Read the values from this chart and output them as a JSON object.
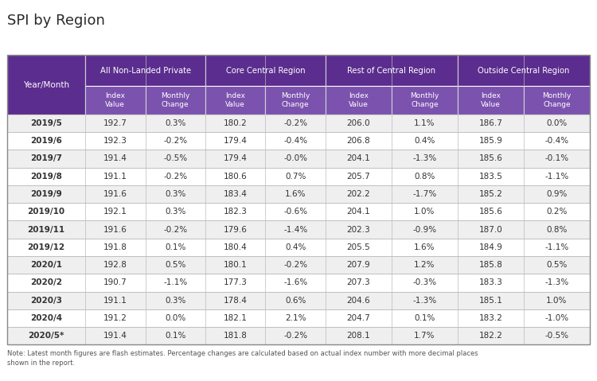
{
  "title": "SPI by Region",
  "header_bg": "#5B2D8E",
  "subheader_bg": "#7B52AE",
  "row_bg_odd": "#FFFFFF",
  "row_bg_even": "#F0F0F0",
  "header_text_color": "#FFFFFF",
  "data_text_color": "#333333",
  "border_color": "#BBBBBB",
  "title_color": "#333333",
  "note_text": "Note: Latest month figures are flash estimates. Percentage changes are calculated based on actual index number with more decimal places\nshown in the report.",
  "col_groups": [
    "Year/Month",
    "All Non-Landed Private",
    "Core Central Region",
    "Rest of Central Region",
    "Outside Central Region"
  ],
  "col_group_spans": [
    1,
    2,
    2,
    2,
    2
  ],
  "subheaders": [
    "",
    "Index\nValue",
    "Monthly\nChange",
    "Index\nValue",
    "Monthly\nChange",
    "Index\nValue",
    "Monthly\nChange",
    "Index\nValue",
    "Monthly\nChange"
  ],
  "rows": [
    [
      "2019/5",
      "192.7",
      "0.3%",
      "180.2",
      "-0.2%",
      "206.0",
      "1.1%",
      "186.7",
      "0.0%"
    ],
    [
      "2019/6",
      "192.3",
      "-0.2%",
      "179.4",
      "-0.4%",
      "206.8",
      "0.4%",
      "185.9",
      "-0.4%"
    ],
    [
      "2019/7",
      "191.4",
      "-0.5%",
      "179.4",
      "-0.0%",
      "204.1",
      "-1.3%",
      "185.6",
      "-0.1%"
    ],
    [
      "2019/8",
      "191.1",
      "-0.2%",
      "180.6",
      "0.7%",
      "205.7",
      "0.8%",
      "183.5",
      "-1.1%"
    ],
    [
      "2019/9",
      "191.6",
      "0.3%",
      "183.4",
      "1.6%",
      "202.2",
      "-1.7%",
      "185.2",
      "0.9%"
    ],
    [
      "2019/10",
      "192.1",
      "0.3%",
      "182.3",
      "-0.6%",
      "204.1",
      "1.0%",
      "185.6",
      "0.2%"
    ],
    [
      "2019/11",
      "191.6",
      "-0.2%",
      "179.6",
      "-1.4%",
      "202.3",
      "-0.9%",
      "187.0",
      "0.8%"
    ],
    [
      "2019/12",
      "191.8",
      "0.1%",
      "180.4",
      "0.4%",
      "205.5",
      "1.6%",
      "184.9",
      "-1.1%"
    ],
    [
      "2020/1",
      "192.8",
      "0.5%",
      "180.1",
      "-0.2%",
      "207.9",
      "1.2%",
      "185.8",
      "0.5%"
    ],
    [
      "2020/2",
      "190.7",
      "-1.1%",
      "177.3",
      "-1.6%",
      "207.3",
      "-0.3%",
      "183.3",
      "-1.3%"
    ],
    [
      "2020/3",
      "191.1",
      "0.3%",
      "178.4",
      "0.6%",
      "204.6",
      "-1.3%",
      "185.1",
      "1.0%"
    ],
    [
      "2020/4",
      "191.2",
      "0.0%",
      "182.1",
      "2.1%",
      "204.7",
      "0.1%",
      "183.2",
      "-1.0%"
    ],
    [
      "2020/5*",
      "191.4",
      "0.1%",
      "181.8",
      "-0.2%",
      "208.1",
      "1.7%",
      "182.2",
      "-0.5%"
    ]
  ],
  "col_widths_rel": [
    1.3,
    1.0,
    1.0,
    1.0,
    1.0,
    1.1,
    1.1,
    1.1,
    1.1
  ]
}
